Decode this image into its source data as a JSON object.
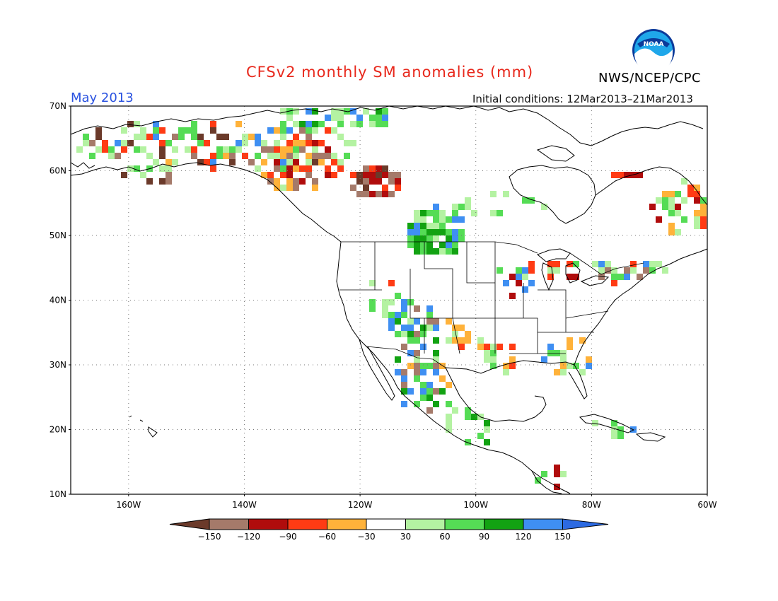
{
  "title": "CFSv2 monthly SM anomalies (mm)",
  "forecast_month": "May 2013",
  "initial_conditions": "Initial conditions: 12Mar2013–21Mar2013",
  "agency": "NWS/NCEP/CPC",
  "logo_text": "NOAA",
  "map": {
    "lon_range": [
      -170,
      -60
    ],
    "lat_range": [
      10,
      70
    ],
    "lat_labels": [
      "70N",
      "60N",
      "50N",
      "40N",
      "30N",
      "20N",
      "10N"
    ],
    "lon_labels": [
      "160W",
      "140W",
      "120W",
      "100W",
      "80W",
      "60W"
    ]
  },
  "legend": {
    "tick_labels": [
      "−150",
      "−120",
      "−90",
      "−60",
      "−30",
      "30",
      "60",
      "90",
      "120",
      "150"
    ],
    "colors": [
      "#6b3a2a",
      "#a57a6a",
      "#b00c0c",
      "#ff3b14",
      "#ffb23a",
      "#ffffff",
      "#b4f2a2",
      "#55dc55",
      "#12a212",
      "#3f8ff2",
      "#2c6ae2"
    ]
  }
}
